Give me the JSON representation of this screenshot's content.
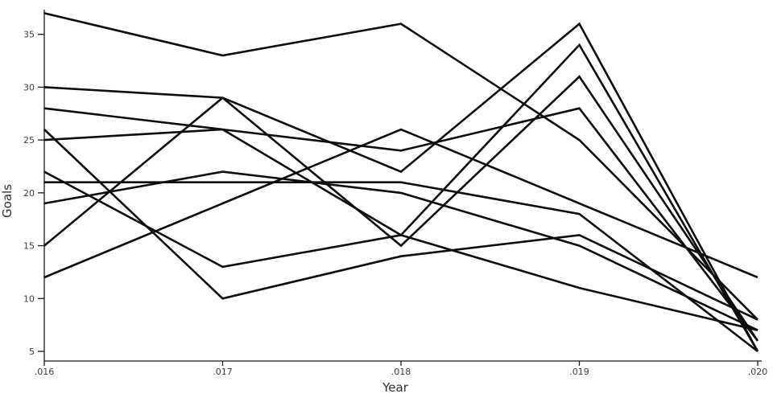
{
  "chart_data": {
    "type": "line",
    "title": "",
    "xlabel": "Year",
    "ylabel": "Goals",
    "x_tick_labels": [
      ".016",
      ".017",
      ".018",
      ".019",
      ".020"
    ],
    "y_ticks": [
      5,
      10,
      15,
      20,
      25,
      30,
      35
    ],
    "ylim": [
      4,
      38
    ],
    "grid": false,
    "legend_position": "none",
    "line_color": "#0d0d0d",
    "text_color": "#3d3d3d",
    "series": [
      {
        "values": [
          37,
          33,
          36,
          25,
          8
        ]
      },
      {
        "values": [
          30,
          29,
          15,
          31,
          6
        ]
      },
      {
        "values": [
          28,
          26,
          16,
          11,
          7
        ]
      },
      {
        "values": [
          26,
          10,
          14,
          16,
          8
        ]
      },
      {
        "values": [
          25,
          26,
          24,
          28,
          6
        ]
      },
      {
        "values": [
          22,
          13,
          16,
          34,
          5
        ]
      },
      {
        "values": [
          21,
          21,
          21,
          18,
          5
        ]
      },
      {
        "values": [
          19,
          22,
          20,
          15,
          7
        ]
      },
      {
        "values": [
          15,
          29,
          22,
          36,
          5
        ]
      },
      {
        "values": [
          12,
          19,
          26,
          19,
          12
        ]
      }
    ]
  }
}
